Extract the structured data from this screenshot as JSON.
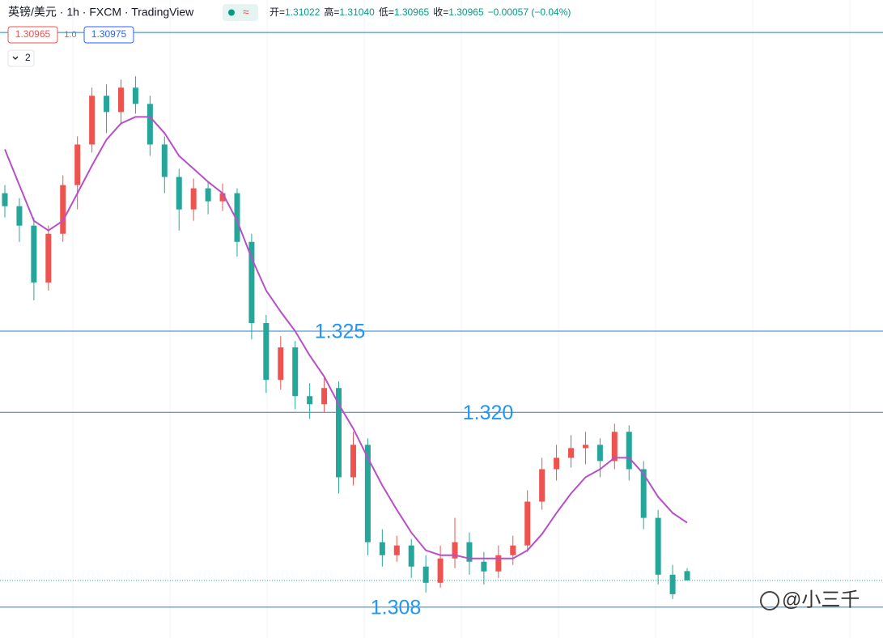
{
  "header": {
    "symbol": "英镑/美元 · 1h · FXCM · TradingView",
    "badge": "≈",
    "ohlc": [
      {
        "label": "开=",
        "value": "1.31022"
      },
      {
        "label": "高=",
        "value": "1.31040"
      },
      {
        "label": "低=",
        "value": "1.30965"
      },
      {
        "label": "收=",
        "value": "1.30965"
      }
    ],
    "change": "−0.00057 (−0.04%)",
    "sell_price": "1.30965",
    "spread": "1.0",
    "buy_price": "1.30975",
    "indicators": "2"
  },
  "watermark": "@小三千",
  "chart_data": {
    "type": "candlestick",
    "up_color": "#ef5350",
    "down_color": "#26a69a",
    "ma_color": "#b84fc9",
    "level_color": "#2a7fbf",
    "ylim": [
      1.3061,
      1.3454
    ],
    "open": [
      1.3335,
      1.3327,
      1.3315,
      1.328,
      1.331,
      1.334,
      1.3365,
      1.3395,
      1.3385,
      1.34,
      1.339,
      1.3365,
      1.3345,
      1.3325,
      1.3338,
      1.333,
      1.3335,
      1.3305,
      1.3255,
      1.322,
      1.324,
      1.321,
      1.3205,
      1.3215,
      1.316,
      1.318,
      1.312,
      1.3112,
      1.3118,
      1.3105,
      1.3095,
      1.311,
      1.312,
      1.3108,
      1.3102,
      1.3112,
      1.3118,
      1.3145,
      1.3165,
      1.3172,
      1.3178,
      1.318,
      1.317,
      1.3188,
      1.3165,
      1.3135,
      1.31,
      1.31022
    ],
    "high": [
      1.334,
      1.3332,
      1.332,
      1.3315,
      1.3346,
      1.337,
      1.34,
      1.3402,
      1.3405,
      1.3407,
      1.3395,
      1.337,
      1.335,
      1.3344,
      1.3342,
      1.3341,
      1.3338,
      1.331,
      1.326,
      1.3247,
      1.3244,
      1.3218,
      1.3222,
      1.3219,
      1.3188,
      1.3184,
      1.3128,
      1.3124,
      1.3122,
      1.3112,
      1.3118,
      1.3135,
      1.3126,
      1.3114,
      1.3118,
      1.3124,
      1.3152,
      1.3172,
      1.318,
      1.3186,
      1.3188,
      1.3184,
      1.3193,
      1.3192,
      1.317,
      1.314,
      1.3106,
      1.3104
    ],
    "low": [
      1.332,
      1.3305,
      1.3269,
      1.3275,
      1.3305,
      1.3325,
      1.336,
      1.3372,
      1.3378,
      1.3384,
      1.3358,
      1.3335,
      1.3312,
      1.3318,
      1.3322,
      1.3324,
      1.3296,
      1.3245,
      1.3212,
      1.3214,
      1.3202,
      1.3196,
      1.32,
      1.315,
      1.3155,
      1.3112,
      1.3105,
      1.3108,
      1.3098,
      1.3089,
      1.3092,
      1.3104,
      1.31,
      1.3094,
      1.3098,
      1.3106,
      1.3114,
      1.314,
      1.3158,
      1.3166,
      1.3168,
      1.316,
      1.3165,
      1.3158,
      1.3128,
      1.3094,
      1.3085,
      1.30965
    ],
    "close": [
      1.3327,
      1.3315,
      1.328,
      1.331,
      1.334,
      1.3365,
      1.3395,
      1.3385,
      1.34,
      1.339,
      1.3365,
      1.3345,
      1.3325,
      1.3338,
      1.333,
      1.3335,
      1.3305,
      1.3255,
      1.322,
      1.324,
      1.321,
      1.3205,
      1.3215,
      1.316,
      1.318,
      1.312,
      1.3112,
      1.3118,
      1.3105,
      1.3095,
      1.311,
      1.312,
      1.3108,
      1.3102,
      1.3112,
      1.3118,
      1.3145,
      1.3165,
      1.3172,
      1.3178,
      1.318,
      1.317,
      1.3188,
      1.3165,
      1.3135,
      1.31,
      1.3088,
      1.30965
    ],
    "ma": [
      1.3362,
      1.334,
      1.3318,
      1.3312,
      1.3318,
      1.3335,
      1.3352,
      1.3368,
      1.3378,
      1.3382,
      1.3382,
      1.3372,
      1.3358,
      1.335,
      1.3342,
      1.3335,
      1.3318,
      1.3295,
      1.3275,
      1.3262,
      1.325,
      1.3235,
      1.3222,
      1.3205,
      1.319,
      1.3172,
      1.3155,
      1.314,
      1.3126,
      1.3115,
      1.3112,
      1.3112,
      1.311,
      1.311,
      1.311,
      1.311,
      1.3115,
      1.3125,
      1.3138,
      1.315,
      1.316,
      1.3165,
      1.3172,
      1.3172,
      1.3162,
      1.3148,
      1.3138,
      1.3132
    ],
    "levels": [
      1.3434,
      {
        "value": 1.325,
        "label": "1.325"
      },
      {
        "value": 1.32,
        "label": "1.320"
      },
      {
        "value": 1.308,
        "label": "1.308"
      }
    ]
  }
}
